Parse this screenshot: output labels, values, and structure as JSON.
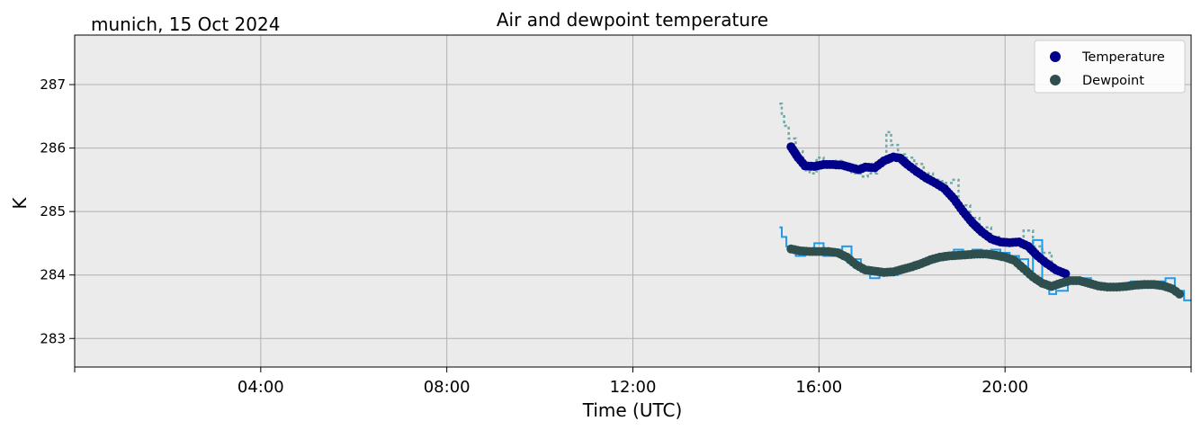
{
  "chart_data": {
    "type": "scatter",
    "title": "Air and dewpoint temperature",
    "subtitle": "munich, 15 Oct 2024",
    "xlabel": "Time (UTC)",
    "ylabel": "K",
    "xlim": [
      0,
      24
    ],
    "ylim": [
      282.55,
      287.78
    ],
    "x_ticks": [
      {
        "value": 0,
        "label": ""
      },
      {
        "value": 4,
        "label": "04:00"
      },
      {
        "value": 8,
        "label": "08:00"
      },
      {
        "value": 12,
        "label": "12:00"
      },
      {
        "value": 16,
        "label": "16:00"
      },
      {
        "value": 20,
        "label": "20:00"
      },
      {
        "value": 24,
        "label": ""
      }
    ],
    "y_ticks": [
      283,
      284,
      285,
      286,
      287
    ],
    "grid": true,
    "legend_position": "top-right",
    "series": [
      {
        "name": "Temperature",
        "color": "#00008b",
        "raw_color": "#6fa8a8",
        "points": [
          [
            15.4,
            286.02
          ],
          [
            15.55,
            285.85
          ],
          [
            15.7,
            285.72
          ],
          [
            15.9,
            285.71
          ],
          [
            16.1,
            285.74
          ],
          [
            16.3,
            285.74
          ],
          [
            16.5,
            285.73
          ],
          [
            16.7,
            285.69
          ],
          [
            16.85,
            285.66
          ],
          [
            17.0,
            285.7
          ],
          [
            17.2,
            285.69
          ],
          [
            17.4,
            285.8
          ],
          [
            17.6,
            285.86
          ],
          [
            17.75,
            285.84
          ],
          [
            17.9,
            285.74
          ],
          [
            18.1,
            285.63
          ],
          [
            18.3,
            285.53
          ],
          [
            18.5,
            285.45
          ],
          [
            18.7,
            285.36
          ],
          [
            18.9,
            285.2
          ],
          [
            19.1,
            285.0
          ],
          [
            19.3,
            284.82
          ],
          [
            19.5,
            284.68
          ],
          [
            19.7,
            284.57
          ],
          [
            19.9,
            284.52
          ],
          [
            20.1,
            284.51
          ],
          [
            20.3,
            284.52
          ],
          [
            20.5,
            284.45
          ],
          [
            20.7,
            284.3
          ],
          [
            20.9,
            284.18
          ],
          [
            21.1,
            284.08
          ],
          [
            21.3,
            284.02
          ]
        ],
        "raw": [
          [
            15.15,
            286.7
          ],
          [
            15.2,
            286.5
          ],
          [
            15.25,
            286.35
          ],
          [
            15.35,
            286.15
          ],
          [
            15.5,
            285.95
          ],
          [
            15.65,
            285.65
          ],
          [
            15.8,
            285.6
          ],
          [
            15.95,
            285.85
          ],
          [
            16.1,
            285.7
          ],
          [
            16.3,
            285.8
          ],
          [
            16.55,
            285.65
          ],
          [
            16.7,
            285.6
          ],
          [
            16.9,
            285.55
          ],
          [
            17.05,
            285.6
          ],
          [
            17.25,
            285.8
          ],
          [
            17.45,
            286.25
          ],
          [
            17.55,
            286.05
          ],
          [
            17.7,
            285.9
          ],
          [
            17.85,
            285.85
          ],
          [
            18.05,
            285.75
          ],
          [
            18.25,
            285.6
          ],
          [
            18.45,
            285.5
          ],
          [
            18.65,
            285.45
          ],
          [
            18.85,
            285.5
          ],
          [
            19.0,
            285.1
          ],
          [
            19.25,
            284.9
          ],
          [
            19.45,
            284.75
          ],
          [
            19.7,
            284.6
          ],
          [
            19.9,
            284.5
          ],
          [
            20.15,
            284.55
          ],
          [
            20.4,
            284.7
          ],
          [
            20.6,
            284.45
          ],
          [
            20.8,
            284.35
          ],
          [
            21.0,
            284.15
          ]
        ]
      },
      {
        "name": "Dewpoint",
        "color": "#2f4f4f",
        "raw_color": "#1f9bea",
        "points": [
          [
            15.4,
            284.41
          ],
          [
            15.6,
            284.38
          ],
          [
            15.8,
            284.37
          ],
          [
            16.0,
            284.37
          ],
          [
            16.2,
            284.37
          ],
          [
            16.4,
            284.35
          ],
          [
            16.6,
            284.28
          ],
          [
            16.8,
            284.16
          ],
          [
            17.0,
            284.08
          ],
          [
            17.2,
            284.06
          ],
          [
            17.4,
            284.04
          ],
          [
            17.6,
            284.05
          ],
          [
            17.8,
            284.09
          ],
          [
            18.0,
            284.13
          ],
          [
            18.2,
            284.18
          ],
          [
            18.4,
            284.24
          ],
          [
            18.6,
            284.28
          ],
          [
            18.8,
            284.3
          ],
          [
            19.0,
            284.31
          ],
          [
            19.2,
            284.32
          ],
          [
            19.4,
            284.33
          ],
          [
            19.6,
            284.33
          ],
          [
            19.8,
            284.31
          ],
          [
            20.0,
            284.28
          ],
          [
            20.2,
            284.23
          ],
          [
            20.4,
            284.1
          ],
          [
            20.6,
            283.97
          ],
          [
            20.8,
            283.87
          ],
          [
            21.0,
            283.82
          ],
          [
            21.2,
            283.87
          ],
          [
            21.4,
            283.91
          ],
          [
            21.6,
            283.91
          ],
          [
            21.8,
            283.87
          ],
          [
            22.0,
            283.83
          ],
          [
            22.2,
            283.81
          ],
          [
            22.4,
            283.81
          ],
          [
            22.6,
            283.82
          ],
          [
            22.8,
            283.84
          ],
          [
            23.0,
            283.85
          ],
          [
            23.2,
            283.85
          ],
          [
            23.4,
            283.83
          ],
          [
            23.6,
            283.78
          ],
          [
            23.75,
            283.7
          ]
        ],
        "raw": [
          [
            15.15,
            284.75
          ],
          [
            15.2,
            284.6
          ],
          [
            15.3,
            284.45
          ],
          [
            15.5,
            284.3
          ],
          [
            15.7,
            284.35
          ],
          [
            15.9,
            284.5
          ],
          [
            16.1,
            284.3
          ],
          [
            16.3,
            284.4
          ],
          [
            16.5,
            284.45
          ],
          [
            16.7,
            284.25
          ],
          [
            16.9,
            284.05
          ],
          [
            17.1,
            283.95
          ],
          [
            17.3,
            284.0
          ],
          [
            17.5,
            284.0
          ],
          [
            17.7,
            284.1
          ],
          [
            17.9,
            284.15
          ],
          [
            18.1,
            284.2
          ],
          [
            18.3,
            284.25
          ],
          [
            18.5,
            284.3
          ],
          [
            18.7,
            284.35
          ],
          [
            18.9,
            284.4
          ],
          [
            19.1,
            284.35
          ],
          [
            19.3,
            284.4
          ],
          [
            19.5,
            284.38
          ],
          [
            19.7,
            284.4
          ],
          [
            19.9,
            284.35
          ],
          [
            20.1,
            284.3
          ],
          [
            20.3,
            284.25
          ],
          [
            20.5,
            284.0
          ],
          [
            20.6,
            284.55
          ],
          [
            20.8,
            283.85
          ],
          [
            20.95,
            283.7
          ],
          [
            21.1,
            283.75
          ],
          [
            21.35,
            283.95
          ],
          [
            21.6,
            283.95
          ],
          [
            21.85,
            283.85
          ],
          [
            22.1,
            283.8
          ],
          [
            22.4,
            283.78
          ],
          [
            22.7,
            283.9
          ],
          [
            22.9,
            283.85
          ],
          [
            23.2,
            283.9
          ],
          [
            23.45,
            283.95
          ],
          [
            23.65,
            283.75
          ],
          [
            23.85,
            283.6
          ],
          [
            24.0,
            283.6
          ]
        ]
      }
    ]
  }
}
